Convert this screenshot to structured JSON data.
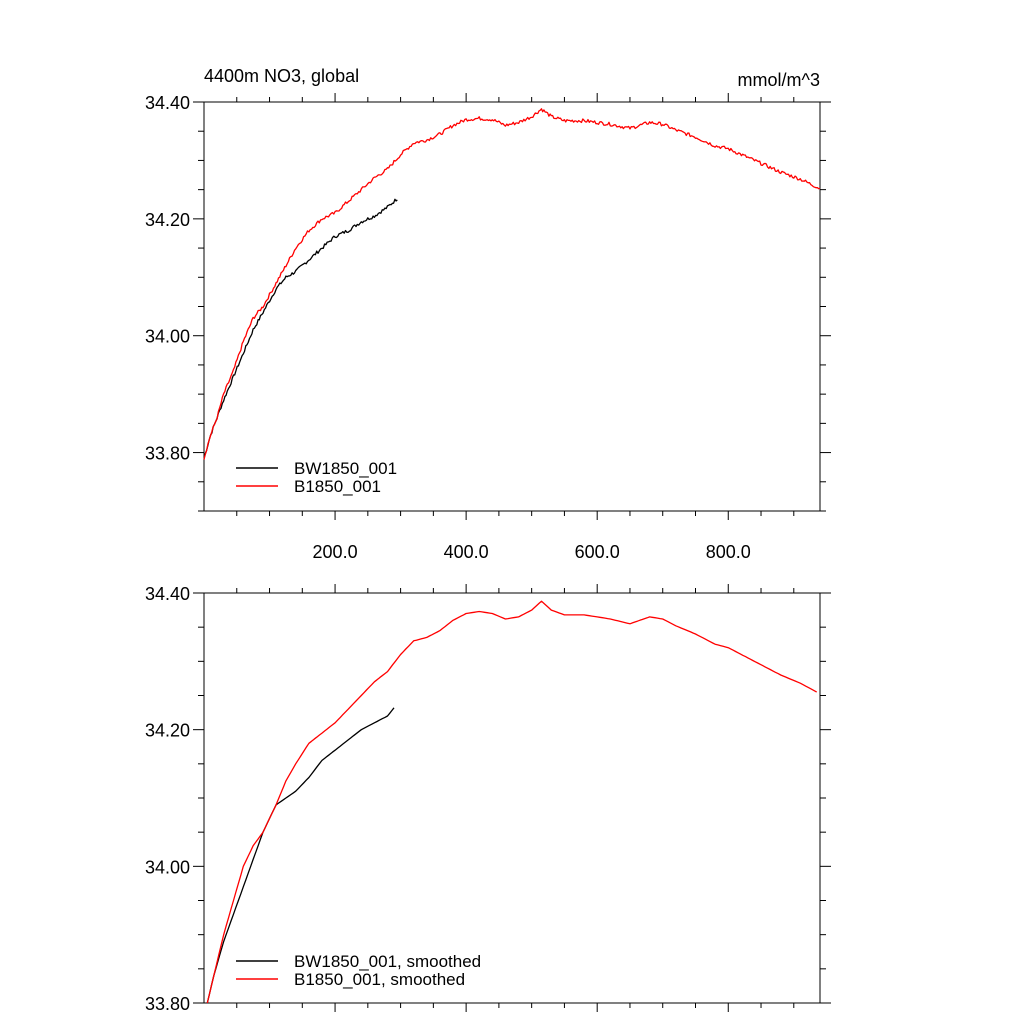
{
  "colors": {
    "series_black": "#000000",
    "series_red": "#ff0000",
    "axis": "#000000"
  },
  "chart_data": [
    {
      "type": "line",
      "title": "4400m NO3, global",
      "units": "mmol/m^3",
      "xlim": [
        0,
        940
      ],
      "ylim": [
        33.7,
        34.4
      ],
      "xticks": [
        "200.0",
        "400.0",
        "600.0",
        "800.0"
      ],
      "xtick_values": [
        200,
        400,
        600,
        800
      ],
      "yticks": [
        "33.80",
        "34.00",
        "34.20",
        "34.40"
      ],
      "ytick_values": [
        33.8,
        34.0,
        34.2,
        34.4
      ],
      "legend_position": "bottom-left",
      "series": [
        {
          "name": "BW1850_001",
          "color": "#000000",
          "noisy": true,
          "x": [
            0,
            10,
            20,
            30,
            45,
            60,
            75,
            90,
            100,
            110,
            125,
            140,
            160,
            180,
            200,
            220,
            240,
            260,
            280,
            295
          ],
          "y": [
            33.79,
            33.83,
            33.86,
            33.89,
            33.93,
            33.97,
            34.01,
            34.04,
            34.06,
            34.08,
            34.1,
            34.11,
            34.13,
            34.15,
            34.17,
            34.18,
            34.195,
            34.205,
            34.22,
            34.235
          ]
        },
        {
          "name": "B1850_001",
          "color": "#ff0000",
          "noisy": true,
          "x": [
            0,
            10,
            20,
            30,
            45,
            60,
            75,
            90,
            100,
            110,
            125,
            140,
            160,
            180,
            200,
            220,
            240,
            260,
            280,
            300,
            320,
            340,
            360,
            380,
            400,
            420,
            440,
            460,
            480,
            500,
            515,
            530,
            550,
            580,
            620,
            650,
            680,
            700,
            720,
            750,
            780,
            800,
            830,
            860,
            880,
            910,
            940
          ],
          "y": [
            33.79,
            33.83,
            33.86,
            33.9,
            33.94,
            33.99,
            34.03,
            34.05,
            34.07,
            34.09,
            34.12,
            34.15,
            34.18,
            34.2,
            34.21,
            34.23,
            34.25,
            34.27,
            34.285,
            34.31,
            34.33,
            34.335,
            34.345,
            34.36,
            34.37,
            34.372,
            34.37,
            34.36,
            34.365,
            34.375,
            34.388,
            34.375,
            34.368,
            34.368,
            34.362,
            34.355,
            34.365,
            34.362,
            34.352,
            34.34,
            34.325,
            34.32,
            34.305,
            34.29,
            34.28,
            34.268,
            34.252
          ]
        }
      ]
    },
    {
      "type": "line",
      "xlim": [
        0,
        940
      ],
      "ylim": [
        33.8,
        34.4
      ],
      "yticks": [
        "33.80",
        "34.00",
        "34.20",
        "34.40"
      ],
      "ytick_values": [
        33.8,
        34.0,
        34.2,
        34.4
      ],
      "legend_position": "bottom-left",
      "series": [
        {
          "name": "BW1850_001, smoothed",
          "color": "#000000",
          "noisy": false,
          "x": [
            5,
            15,
            30,
            45,
            60,
            75,
            90,
            100,
            110,
            125,
            140,
            160,
            180,
            200,
            220,
            240,
            260,
            280,
            290
          ],
          "y": [
            33.8,
            33.84,
            33.89,
            33.93,
            33.97,
            34.01,
            34.05,
            34.07,
            34.09,
            34.1,
            34.11,
            34.13,
            34.155,
            34.17,
            34.185,
            34.2,
            34.21,
            34.22,
            34.232
          ]
        },
        {
          "name": "B1850_001, smoothed",
          "color": "#ff0000",
          "noisy": false,
          "x": [
            5,
            15,
            30,
            45,
            60,
            75,
            90,
            100,
            110,
            125,
            140,
            160,
            180,
            200,
            220,
            240,
            260,
            280,
            300,
            320,
            340,
            360,
            380,
            400,
            420,
            440,
            460,
            480,
            500,
            515,
            530,
            550,
            580,
            620,
            650,
            680,
            700,
            720,
            750,
            780,
            800,
            830,
            860,
            880,
            910,
            935
          ],
          "y": [
            33.8,
            33.84,
            33.9,
            33.95,
            34.0,
            34.03,
            34.05,
            34.07,
            34.09,
            34.125,
            34.15,
            34.18,
            34.195,
            34.21,
            34.23,
            34.25,
            34.27,
            34.285,
            34.31,
            34.33,
            34.335,
            34.345,
            34.36,
            34.37,
            34.373,
            34.37,
            34.362,
            34.365,
            34.375,
            34.388,
            34.375,
            34.368,
            34.368,
            34.362,
            34.355,
            34.365,
            34.362,
            34.352,
            34.34,
            34.325,
            34.32,
            34.305,
            34.29,
            34.28,
            34.268,
            34.255
          ]
        }
      ]
    }
  ]
}
